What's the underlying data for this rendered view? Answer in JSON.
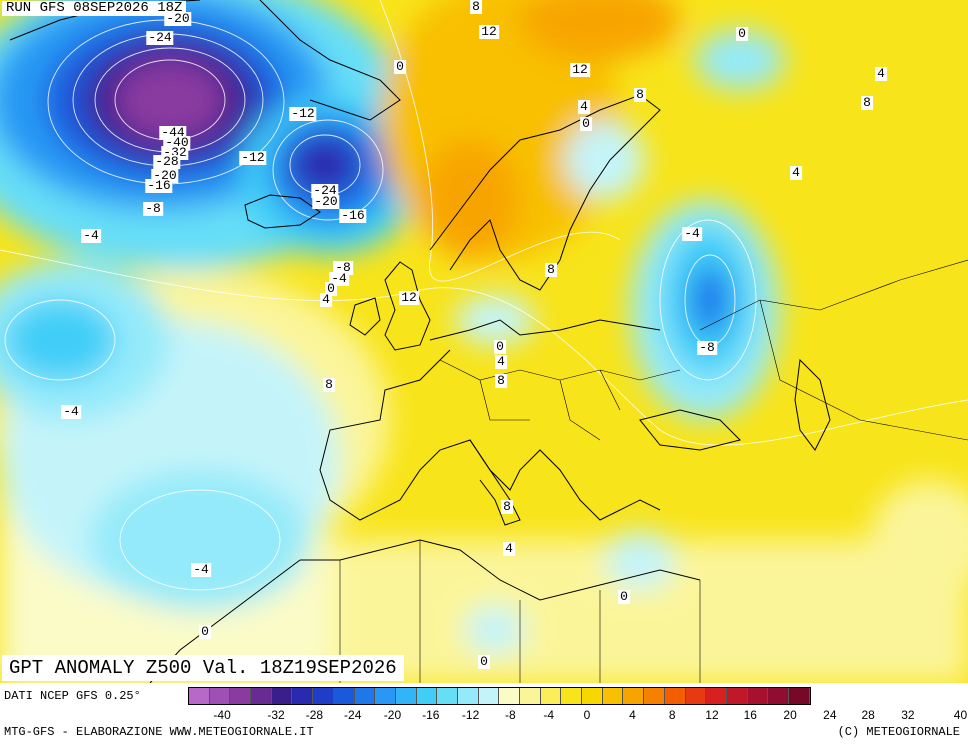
{
  "header": {
    "run_text": "RUN GFS 08SEP2026 18Z"
  },
  "title": {
    "text": "GPT ANOMALY Z500 Val. 18Z19SEP2026"
  },
  "footer": {
    "source_text": "DATI NCEP GFS 0.25°",
    "credit_left": "MTG-GFS - ELABORAZIONE WWW.METEOGIORNALE.IT",
    "credit_right": "(C) METEOGIORNALE"
  },
  "legend": {
    "colors": [
      "#b868c8",
      "#a050b4",
      "#8a3aa0",
      "#6a2a94",
      "#3a1e8c",
      "#2a2ab0",
      "#1e3ec8",
      "#1a58dc",
      "#1e78ec",
      "#2898f4",
      "#32b4f8",
      "#40cef8",
      "#66def8",
      "#94eafa",
      "#c4f4fa",
      "#fbfbc8",
      "#fbf59a",
      "#fbee5a",
      "#f8e41a",
      "#f8d600",
      "#f8c000",
      "#f8a400",
      "#f68000",
      "#f25e00",
      "#e83a10",
      "#d82020",
      "#c01828",
      "#a81030",
      "#900c30",
      "#780828"
    ],
    "ticks": [
      "-40",
      "-32",
      "-28",
      "-24",
      "-20",
      "-16",
      "-12",
      "-8",
      "-4",
      "0",
      "4",
      "8",
      "12",
      "16",
      "20",
      "24",
      "28",
      "32",
      "40"
    ]
  },
  "contour_labels": [
    "-20",
    "-24",
    "8",
    "12",
    "0",
    "0",
    "12",
    "4",
    "8",
    "0",
    "4",
    "8",
    "-12",
    "-44",
    "-40",
    "-32",
    "-28",
    "-20",
    "-16",
    "-12",
    "-24",
    "-20",
    "-16",
    "-8",
    "-4",
    "4",
    "-4",
    "-8",
    "8",
    "-4",
    "0",
    "4",
    "12",
    "0",
    "4",
    "8",
    "-8",
    "8",
    "-4",
    "8",
    "4",
    "0",
    "-4",
    "0"
  ],
  "colors": {
    "land_line": "#000000",
    "contour_line": "#ffffff"
  }
}
